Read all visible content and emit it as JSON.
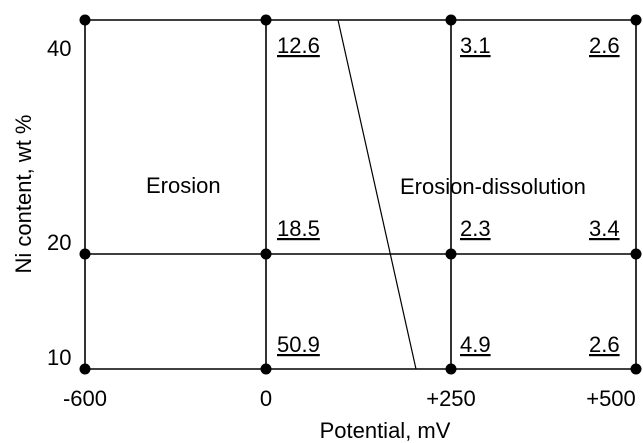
{
  "diagram": {
    "x_axis": {
      "title": "Potential, mV",
      "tick_labels": [
        "-600",
        "0",
        "+250",
        "+500"
      ]
    },
    "y_axis": {
      "title": "Ni content,  wt %",
      "tick_labels": [
        "10",
        "20",
        "40"
      ]
    },
    "regions": {
      "left": "Erosion",
      "right": "Erosion-dissolution"
    },
    "cell_values": {
      "row_40": [
        "12.6",
        "3.1",
        "2.6"
      ],
      "row_20": [
        "18.5",
        "2.3",
        "3.4"
      ],
      "row_10": [
        "50.9",
        "4.9",
        "2.6"
      ]
    },
    "colors": {
      "line": "#000000",
      "background": "#ffffff"
    }
  }
}
